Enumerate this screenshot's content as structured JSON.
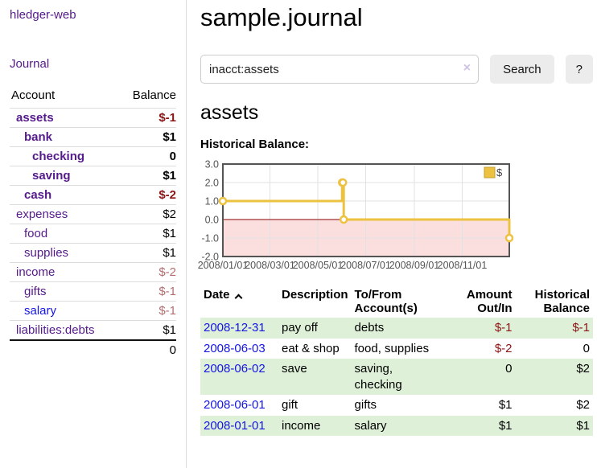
{
  "sidebar": {
    "brand": "hledger-web",
    "journal_label": "Journal",
    "accounts_table": {
      "headers": {
        "account": "Account",
        "balance": "Balance"
      },
      "accounts": [
        {
          "name": "assets",
          "balance": "$-1"
        },
        {
          "name": "bank",
          "balance": "$1"
        },
        {
          "name": "checking",
          "balance": "0"
        },
        {
          "name": "saving",
          "balance": "$1"
        },
        {
          "name": "cash",
          "balance": "$-2"
        },
        {
          "name": "expenses",
          "balance": "$2"
        },
        {
          "name": "food",
          "balance": "$1"
        },
        {
          "name": "supplies",
          "balance": "$1"
        },
        {
          "name": "income",
          "balance": "$-2"
        },
        {
          "name": "gifts",
          "balance": "$-1"
        },
        {
          "name": "salary",
          "balance": "$-1"
        },
        {
          "name": "liabilities:debts",
          "balance": "$1"
        }
      ],
      "total": "0"
    }
  },
  "header": {
    "title": "sample.journal"
  },
  "search": {
    "value": "inacct:assets",
    "clear_icon": "×",
    "button_label": "Search",
    "help_label": "?"
  },
  "account_page": {
    "heading": "assets",
    "chart_label": "Historical Balance:"
  },
  "chart_data": {
    "type": "line",
    "step": true,
    "series": [
      {
        "name": "$",
        "color": "#edc240",
        "points": [
          [
            "2008-01-01",
            1
          ],
          [
            "2008-06-01",
            2
          ],
          [
            "2008-06-02",
            2
          ],
          [
            "2008-06-03",
            0
          ],
          [
            "2008-12-31",
            -1
          ]
        ]
      }
    ],
    "x_range": [
      "2008-01-01",
      "2008-12-31"
    ],
    "x_tick_labels": [
      "2008/01/01",
      "2008/03/01",
      "2008/05/01",
      "2008/07/01",
      "2008/09/01",
      "2008/11/01"
    ],
    "y_ticks": [
      3.0,
      2.0,
      1.0,
      0.0,
      -1.0,
      -2.0
    ],
    "ylim": [
      -2,
      3
    ],
    "grid": true,
    "legend_position": "top-right",
    "zero_line_color": "#8b0000",
    "negative_region_color": "#fbdfdf",
    "border_color": "#545454",
    "gridline_color": "#e2e2e2",
    "tick_label_color": "#545454"
  },
  "register": {
    "headers": {
      "date": "Date",
      "description": "Description",
      "accounts_line1": "To/From",
      "accounts_line2": "Account(s)",
      "amount_line1": "Amount",
      "amount_line2": "Out/In",
      "balance_line1": "Historical",
      "balance_line2": "Balance"
    },
    "rows": [
      {
        "date": "2008-12-31",
        "description": "pay off",
        "accounts": "debts",
        "amount": "$-1",
        "balance": "$-1"
      },
      {
        "date": "2008-06-03",
        "description": "eat & shop",
        "accounts": "food, supplies",
        "amount": "$-2",
        "balance": "0"
      },
      {
        "date": "2008-06-02",
        "description": "save",
        "accounts": "saving, checking",
        "amount": "0",
        "balance": "$2"
      },
      {
        "date": "2008-06-01",
        "description": "gift",
        "accounts": "gifts",
        "amount": "$1",
        "balance": "$2"
      },
      {
        "date": "2008-01-01",
        "description": "income",
        "accounts": "salary",
        "amount": "$1",
        "balance": "$1"
      }
    ]
  }
}
